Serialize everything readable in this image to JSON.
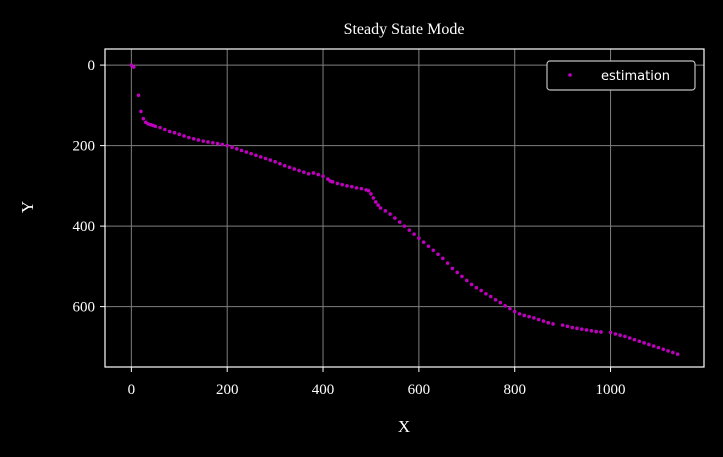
{
  "chart_data": {
    "type": "scatter",
    "title": "Steady State Mode",
    "xlabel": "X",
    "ylabel": "Y",
    "xlim": [
      -55,
      1195
    ],
    "ylim": [
      750,
      -40
    ],
    "y_inverted": true,
    "xticks": [
      0,
      200,
      400,
      600,
      800,
      1000
    ],
    "yticks": [
      0,
      200,
      400,
      600
    ],
    "grid": true,
    "legend_position": "top-right",
    "colors": {
      "background": "#000000",
      "axes": "#ffffff",
      "grid": "#7f7f7f",
      "series": "#bf00bf"
    },
    "series": [
      {
        "name": "estimation",
        "marker": "point",
        "x": [
          0,
          5,
          15,
          20,
          25,
          30,
          35,
          40,
          45,
          50,
          60,
          70,
          80,
          90,
          100,
          110,
          120,
          130,
          140,
          150,
          160,
          170,
          180,
          190,
          200,
          210,
          220,
          230,
          240,
          250,
          260,
          270,
          280,
          290,
          300,
          310,
          320,
          330,
          340,
          350,
          360,
          370,
          380,
          390,
          400,
          410,
          415,
          420,
          430,
          440,
          450,
          460,
          470,
          480,
          490,
          495,
          500,
          505,
          510,
          515,
          520,
          530,
          540,
          550,
          560,
          570,
          580,
          590,
          600,
          610,
          620,
          630,
          640,
          650,
          660,
          670,
          680,
          690,
          700,
          710,
          720,
          730,
          740,
          750,
          760,
          770,
          780,
          790,
          800,
          810,
          820,
          830,
          840,
          850,
          860,
          870,
          880,
          900,
          910,
          920,
          930,
          940,
          950,
          960,
          970,
          980,
          1000,
          1010,
          1020,
          1030,
          1040,
          1050,
          1060,
          1070,
          1080,
          1090,
          1100,
          1110,
          1120,
          1130,
          1140
        ],
        "y": [
          0,
          5,
          75,
          115,
          133,
          142,
          146,
          148,
          150,
          152,
          155,
          160,
          165,
          168,
          172,
          176,
          180,
          183,
          186,
          189,
          191,
          193,
          195,
          197,
          200,
          204,
          208,
          212,
          216,
          220,
          224,
          228,
          232,
          236,
          240,
          245,
          250,
          254,
          258,
          262,
          266,
          270,
          268,
          272,
          276,
          283,
          288,
          290,
          294,
          297,
          300,
          302,
          305,
          307,
          310,
          312,
          320,
          330,
          340,
          348,
          355,
          362,
          370,
          380,
          390,
          400,
          410,
          420,
          430,
          440,
          450,
          460,
          470,
          480,
          492,
          505,
          515,
          525,
          535,
          545,
          553,
          560,
          568,
          575,
          583,
          590,
          598,
          605,
          612,
          618,
          622,
          625,
          628,
          632,
          636,
          640,
          643,
          646,
          649,
          652,
          654,
          656,
          658,
          660,
          662,
          663,
          664,
          668,
          671,
          674,
          678,
          682,
          686,
          690,
          694,
          698,
          702,
          706,
          710,
          714,
          718
        ]
      }
    ]
  }
}
